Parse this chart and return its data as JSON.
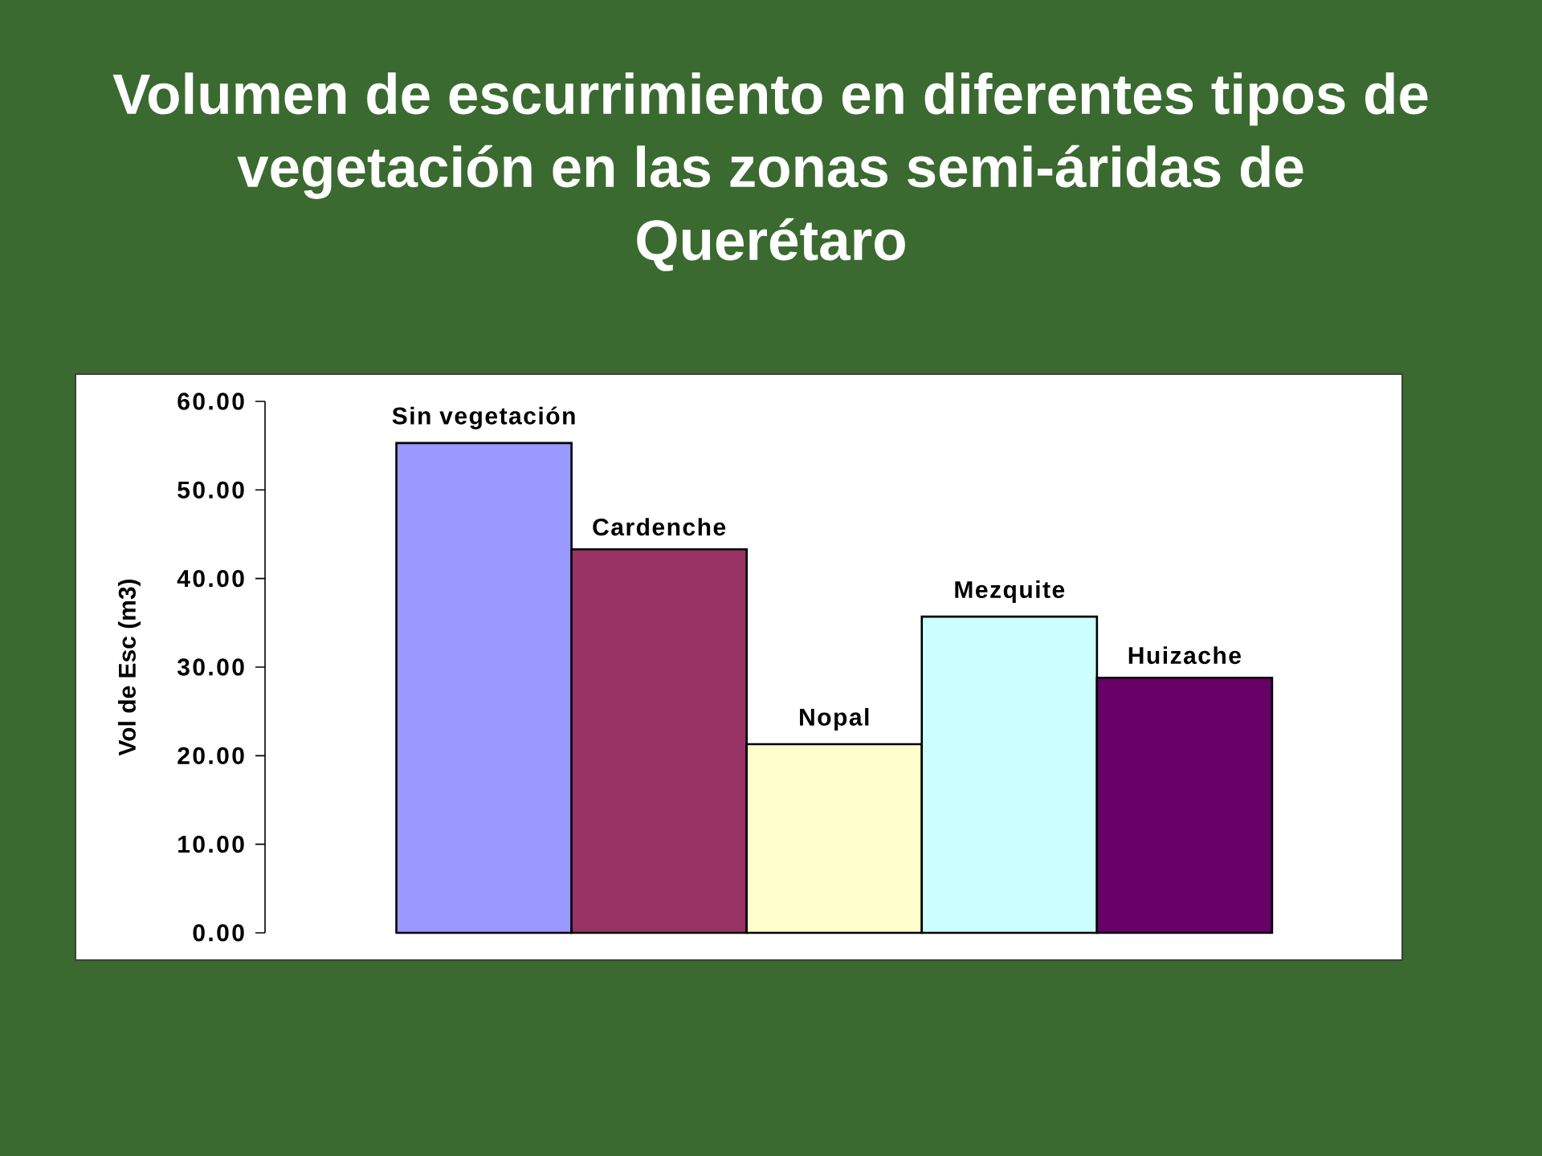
{
  "chart_data": {
    "type": "bar",
    "title": "Volumen de escurrimiento en diferentes tipos de vegetación en las zonas semi-áridas de Querétaro",
    "ylabel": "Vol de Esc (m3)",
    "categories": [
      "Sin vegetación",
      "Cardenche",
      "Nopal",
      "Mezquite",
      "Huizache"
    ],
    "values": [
      55.3,
      43.3,
      21.3,
      35.7,
      28.8
    ],
    "colors": [
      "#9999ff",
      "#993366",
      "#ffffcc",
      "#ccffff",
      "#660066"
    ],
    "ylim": [
      0,
      60
    ],
    "yticks": [
      {
        "value": 0,
        "label": "0.00"
      },
      {
        "value": 10,
        "label": "10.00"
      },
      {
        "value": 20,
        "label": "20.00"
      },
      {
        "value": 30,
        "label": "30.00"
      },
      {
        "value": 40,
        "label": "40.00"
      },
      {
        "value": 50,
        "label": "50.00"
      },
      {
        "value": 60,
        "label": "60.00"
      }
    ]
  }
}
